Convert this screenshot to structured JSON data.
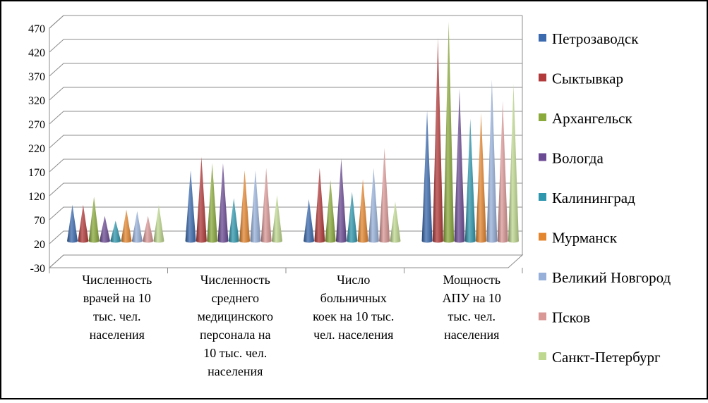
{
  "chart_data": {
    "type": "bar",
    "bar_shape": "cone",
    "title": "",
    "xlabel": "",
    "ylabel": "",
    "ylim": [
      -30,
      470
    ],
    "yticks": [
      "470",
      "420",
      "370",
      "320",
      "270",
      "220",
      "170",
      "120",
      "70",
      "20",
      "-30"
    ],
    "grid": true,
    "legend_position": "right",
    "categories": [
      [
        "Численность",
        "врачей на 10",
        "тыс. чел.",
        "населения"
      ],
      [
        "Численность",
        "среднего",
        "медицинского",
        "персонала на",
        "10 тыс. чел.",
        "населения"
      ],
      [
        "Число",
        "больничных",
        "коек на 10 тыс.",
        "чел. населения"
      ],
      [
        "Мощность",
        "АПУ на 10",
        "тыс. чел.",
        "населения"
      ]
    ],
    "series": [
      {
        "name": "Петрозаводск",
        "color": "#3B6AAE",
        "values": [
          88,
          160,
          100,
          285
        ]
      },
      {
        "name": "Сыктывкар",
        "color": "#B23A3A",
        "values": [
          88,
          188,
          165,
          437
        ]
      },
      {
        "name": "Архангельск",
        "color": "#8BAA3C",
        "values": [
          105,
          175,
          140,
          470
        ]
      },
      {
        "name": "Вологда",
        "color": "#6B4B93",
        "values": [
          65,
          175,
          185,
          330
        ]
      },
      {
        "name": "Калининград",
        "color": "#2F97AD",
        "values": [
          55,
          102,
          115,
          268
        ]
      },
      {
        "name": "Мурманск",
        "color": "#E4862F",
        "values": [
          78,
          160,
          142,
          280
        ]
      },
      {
        "name": "Великий Новгород",
        "color": "#97B0DA",
        "values": [
          75,
          160,
          165,
          350
        ]
      },
      {
        "name": "Псков",
        "color": "#D99795",
        "values": [
          65,
          165,
          207,
          305
        ]
      },
      {
        "name": "Санкт-Петербург",
        "color": "#BFD890",
        "values": [
          88,
          108,
          95,
          340
        ]
      }
    ]
  }
}
